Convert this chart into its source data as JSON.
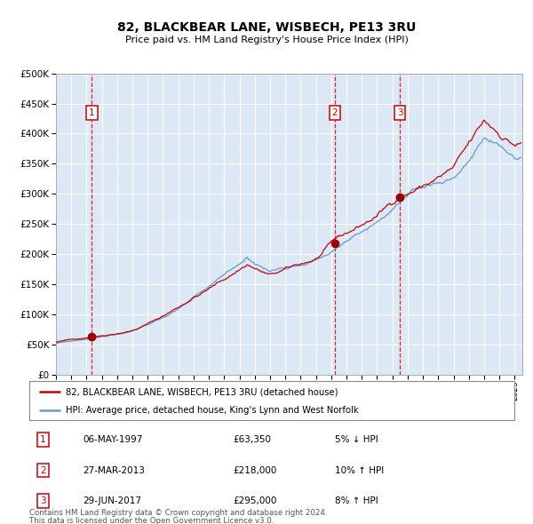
{
  "title": "82, BLACKBEAR LANE, WISBECH, PE13 3RU",
  "subtitle": "Price paid vs. HM Land Registry's House Price Index (HPI)",
  "legend_line1": "82, BLACKBEAR LANE, WISBECH, PE13 3RU (detached house)",
  "legend_line2": "HPI: Average price, detached house, King's Lynn and West Norfolk",
  "footer1": "Contains HM Land Registry data © Crown copyright and database right 2024.",
  "footer2": "This data is licensed under the Open Government Licence v3.0.",
  "sale_points": [
    {
      "num": 1,
      "date": "06-MAY-1997",
      "price": 63350,
      "pct": "5%",
      "dir": "↓",
      "year": 1997.35
    },
    {
      "num": 2,
      "date": "27-MAR-2013",
      "price": 218000,
      "pct": "10%",
      "dir": "↑",
      "year": 2013.23
    },
    {
      "num": 3,
      "date": "29-JUN-2017",
      "price": 295000,
      "pct": "8%",
      "dir": "↑",
      "year": 2017.49
    }
  ],
  "red_line_color": "#cc0000",
  "blue_line_color": "#6699cc",
  "bg_color": "#dce8f5",
  "grid_color": "#ffffff",
  "vline_color": "#dd0000",
  "marker_color": "#990000",
  "ylim": [
    0,
    500000
  ],
  "yticks": [
    0,
    50000,
    100000,
    150000,
    200000,
    250000,
    300000,
    350000,
    400000,
    450000,
    500000
  ],
  "xmin": 1995.0,
  "xmax": 2025.5,
  "anchors_x": [
    1995.0,
    1997.35,
    2000,
    2004,
    2007.5,
    2009.0,
    2012.0,
    2013.23,
    2016.0,
    2017.49,
    2021.0,
    2023.0,
    2025.0
  ],
  "red_anchors_y": [
    54000,
    63350,
    75000,
    130000,
    185000,
    165000,
    190000,
    218000,
    260000,
    295000,
    340000,
    410000,
    380000
  ],
  "blue_anchors_y": [
    52000,
    60000,
    72000,
    125000,
    190000,
    170000,
    195000,
    210000,
    255000,
    285000,
    325000,
    390000,
    355000
  ]
}
